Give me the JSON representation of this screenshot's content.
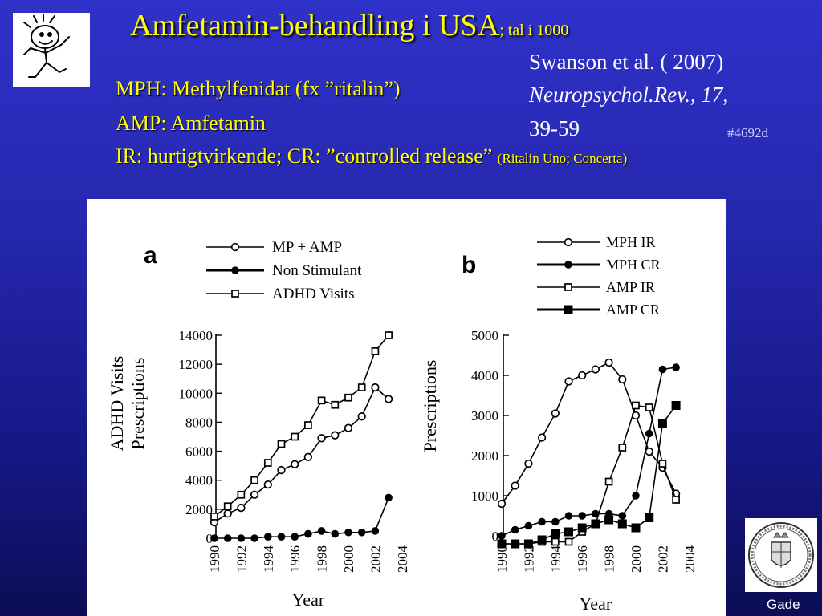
{
  "slide": {
    "title": "Amfetamin-behandling i USA",
    "title_suffix": "; tal i 1000",
    "lines": [
      "MPH: Methylfenidat (fx ”ritalin”)",
      "AMP: Amfetamin"
    ],
    "line3": "IR: hurtigtvirkende; CR: ”controlled release”",
    "line3_small": "(Ritalin Uno; Concerta)",
    "ref1": "Swanson et al. ( 2007)",
    "ref2": "Neuropsychol.Rev., 17",
    "ref2_tail": ",",
    "ref3": "39-59",
    "tag": "#4692d",
    "footer": "Gade"
  },
  "colors": {
    "title": "#ffff00",
    "text": "#ffffff",
    "background": "#2a2cc0"
  },
  "icons": {
    "top_left": "cartoon-icon",
    "bottom_right": "university-seal-icon"
  },
  "chart_data": [
    {
      "panel": "a",
      "type": "line",
      "ylabel": "ADHD Visits Prescriptions",
      "ylabel_lines": [
        "ADHD Visits",
        "Prescriptions"
      ],
      "xlabel": "Year",
      "ylim": [
        0,
        14000
      ],
      "yticks": [
        0,
        2000,
        4000,
        6000,
        8000,
        10000,
        12000,
        14000
      ],
      "xlim": [
        1990,
        2004
      ],
      "xticks": [
        1990,
        1992,
        1994,
        1996,
        1998,
        2000,
        2002,
        2004
      ],
      "x": [
        1990,
        1991,
        1992,
        1993,
        1994,
        1995,
        1996,
        1997,
        1998,
        1999,
        2000,
        2001,
        2002,
        2003
      ],
      "series": [
        {
          "name": "MP + AMP",
          "marker": "open-circle",
          "values": [
            1100,
            1700,
            2100,
            3000,
            3700,
            4700,
            5100,
            5600,
            6900,
            7100,
            7600,
            8400,
            10400,
            9600
          ]
        },
        {
          "name": "Non Stimulant",
          "marker": "filled-circle",
          "values": [
            0,
            0,
            0,
            0,
            100,
            100,
            100,
            300,
            500,
            300,
            400,
            400,
            500,
            2800
          ]
        },
        {
          "name": "ADHD Visits",
          "marker": "open-square",
          "values": [
            1500,
            2200,
            3000,
            4000,
            5200,
            6500,
            7000,
            7800,
            9500,
            9200,
            9700,
            10400,
            12900,
            14000
          ]
        }
      ],
      "grid": false,
      "legend": "top"
    },
    {
      "panel": "b",
      "type": "line",
      "ylabel": "Prescriptions",
      "xlabel": "Year",
      "ylim": [
        0,
        5000
      ],
      "yticks": [
        0,
        1000,
        2000,
        3000,
        4000,
        5000
      ],
      "xlim": [
        1990,
        2004
      ],
      "xticks": [
        1990,
        1992,
        1994,
        1996,
        1998,
        2000,
        2002,
        2004
      ],
      "x": [
        1990,
        1991,
        1992,
        1993,
        1994,
        1995,
        1996,
        1997,
        1998,
        1999,
        2000,
        2001,
        2002,
        2003
      ],
      "series": [
        {
          "name": "MPH IR",
          "marker": "open-circle",
          "values": [
            800,
            1250,
            1800,
            2450,
            3050,
            3850,
            4000,
            4150,
            4320,
            3900,
            3000,
            2100,
            1700,
            1050
          ]
        },
        {
          "name": "MPH CR",
          "marker": "filled-circle",
          "values": [
            0,
            150,
            250,
            350,
            350,
            500,
            500,
            550,
            550,
            500,
            1000,
            2550,
            4150,
            4200
          ]
        },
        {
          "name": "AMP IR",
          "marker": "open-square",
          "values": [
            -200,
            -200,
            -200,
            -150,
            -150,
            -150,
            100,
            300,
            1350,
            2200,
            3250,
            3200,
            1800,
            900
          ]
        },
        {
          "name": "AMP CR",
          "marker": "filled-square",
          "values": [
            -200,
            -200,
            -200,
            -100,
            50,
            100,
            200,
            300,
            400,
            300,
            200,
            450,
            2800,
            3250
          ]
        }
      ],
      "grid": false,
      "legend": "top"
    }
  ]
}
